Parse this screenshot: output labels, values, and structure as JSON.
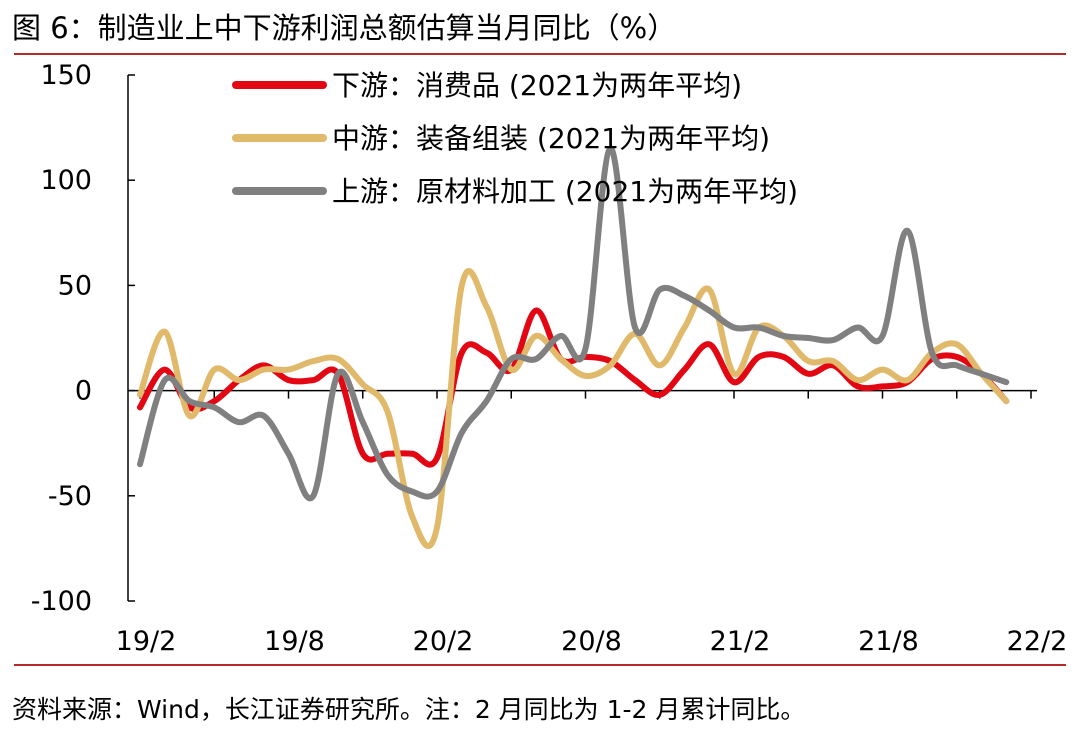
{
  "header": {
    "title": "图 6：制造业上中下游利润总额估算当月同比（%）"
  },
  "footer": {
    "source": "资料来源：Wind，长江证券研究所。注：2 月同比为 1-2 月累计同比。"
  },
  "chart_data": {
    "type": "line",
    "title": "图 6：制造业上中下游利润总额估算当月同比（%）",
    "xlabel": "",
    "ylabel": "",
    "ylim": [
      -100,
      150
    ],
    "yticks": [
      150,
      100,
      50,
      0,
      -50,
      -100
    ],
    "x": [
      "19/2",
      "19/3",
      "19/4",
      "19/5",
      "19/6",
      "19/7",
      "19/8",
      "19/9",
      "19/10",
      "19/11",
      "19/12",
      "20/1",
      "20/2",
      "20/3",
      "20/4",
      "20/5",
      "20/6",
      "20/7",
      "20/8",
      "20/9",
      "20/10",
      "20/11",
      "20/12",
      "21/1",
      "21/2",
      "21/3",
      "21/4",
      "21/5",
      "21/6",
      "21/7",
      "21/8",
      "21/9",
      "21/10",
      "21/11",
      "21/12",
      "22/1",
      "22/2"
    ],
    "xtick_labels": [
      "19/2",
      "19/8",
      "20/2",
      "20/8",
      "21/2",
      "21/8",
      "22/2"
    ],
    "grid": false,
    "legend_position": "top-left",
    "series": [
      {
        "name": "下游：消费品 (2021为两年平均)",
        "color": "#e30613",
        "values": [
          -8,
          10,
          -8,
          -5,
          5,
          12,
          5,
          5,
          8,
          -30,
          -30,
          -30,
          -32,
          18,
          18,
          10,
          38,
          15,
          16,
          14,
          5,
          -2,
          10,
          22,
          4,
          16,
          16,
          8,
          12,
          2,
          2,
          4,
          15,
          16,
          8,
          -5,
          null
        ]
      },
      {
        "name": "中游：装备组装 (2021为两年平均)",
        "color": "#e0b96a",
        "values": [
          -2,
          28,
          -12,
          10,
          5,
          10,
          10,
          14,
          15,
          3,
          -10,
          -60,
          -65,
          50,
          40,
          10,
          26,
          15,
          7,
          12,
          27,
          12,
          30,
          48,
          8,
          30,
          26,
          14,
          14,
          5,
          10,
          5,
          18,
          22,
          8,
          -5,
          null
        ]
      },
      {
        "name": "上游：原材料加工 (2021为两年平均)",
        "color": "#808080",
        "values": [
          -35,
          5,
          -5,
          -8,
          -15,
          -12,
          -30,
          -50,
          8,
          -15,
          -40,
          -48,
          -48,
          -20,
          -5,
          15,
          15,
          26,
          20,
          115,
          30,
          48,
          45,
          38,
          30,
          30,
          26,
          25,
          24,
          30,
          26,
          76,
          18,
          12,
          8,
          4,
          null
        ]
      }
    ]
  }
}
